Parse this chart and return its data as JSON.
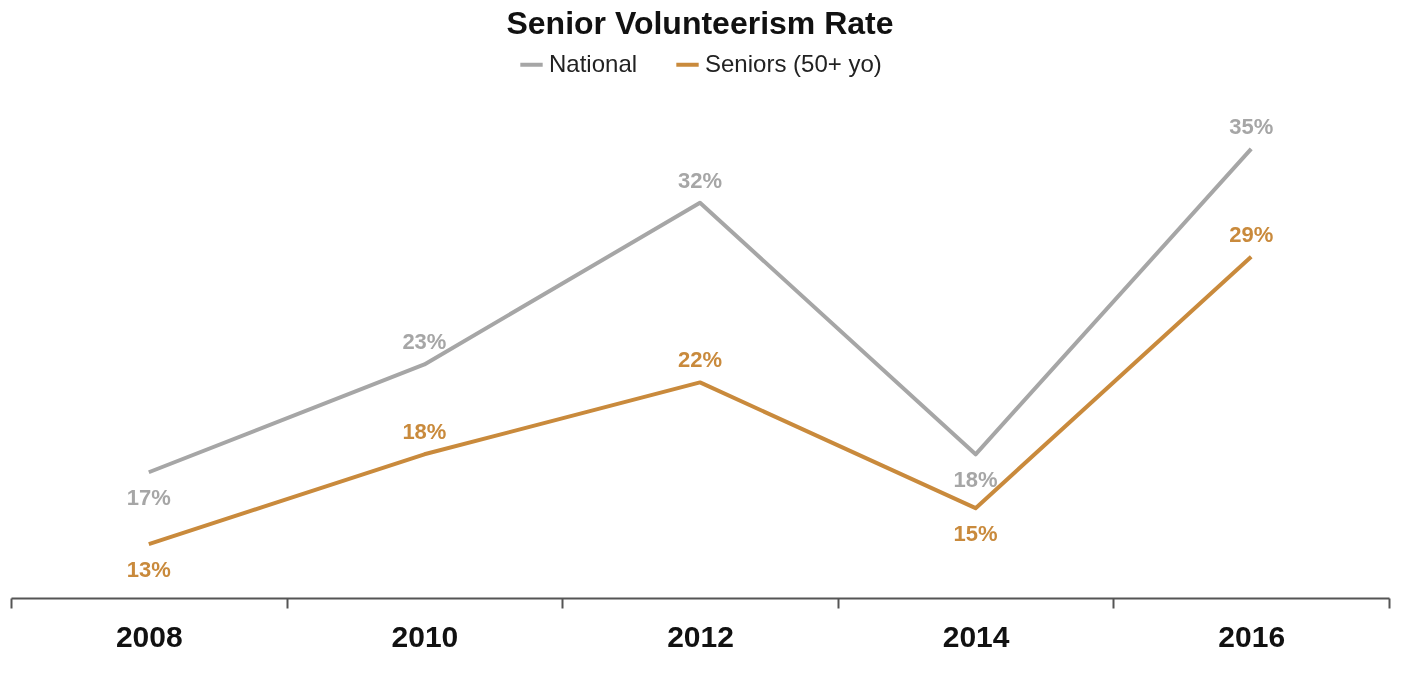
{
  "chart_data": {
    "type": "line",
    "title": "Senior Volunteerism Rate",
    "categories": [
      "2008",
      "2010",
      "2012",
      "2014",
      "2016"
    ],
    "series": [
      {
        "name": "National",
        "color": "#a6a6a6",
        "values": [
          17,
          23,
          32,
          18,
          35
        ],
        "value_labels": [
          "17%",
          "23%",
          "32%",
          "18%",
          "35%"
        ]
      },
      {
        "name": "Seniors (50+ yo)",
        "color": "#c98a3c",
        "values": [
          13,
          18,
          22,
          15,
          29
        ],
        "value_labels": [
          "13%",
          "18%",
          "22%",
          "15%",
          "29%"
        ]
      }
    ],
    "tick_labels": "x",
    "grid": false,
    "legend": "top"
  }
}
